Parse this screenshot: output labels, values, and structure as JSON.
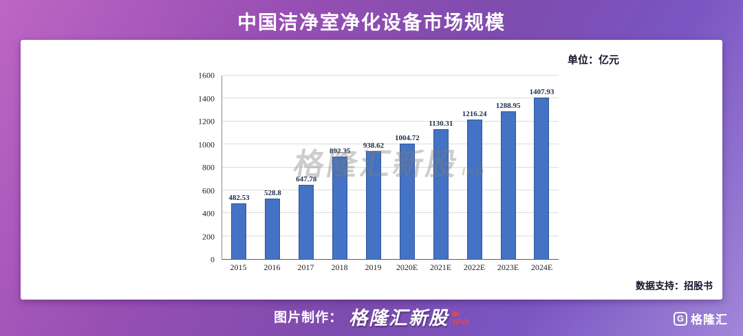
{
  "header": {
    "title": "中国洁净室净化设备市场规模"
  },
  "card": {
    "unit_label": "单位：亿元",
    "data_support": "数据支持：招股书",
    "watermark": {
      "text": "格隆汇新股",
      "ipo": "IPO"
    }
  },
  "footer": {
    "credit_prefix": "图片制作：",
    "brand": "格隆汇新股",
    "brand_ipo": "IPO",
    "logo_text": "格隆汇",
    "logo_glyph": "G"
  },
  "chart_data": {
    "type": "bar",
    "title": "中国洁净室净化设备市场规模",
    "unit": "亿元",
    "categories": [
      "2015",
      "2016",
      "2017",
      "2018",
      "2019",
      "2020E",
      "2021E",
      "2022E",
      "2023E",
      "2024E"
    ],
    "values": [
      482.53,
      528.8,
      647.78,
      892.35,
      938.62,
      1004.72,
      1130.31,
      1216.24,
      1288.95,
      1407.93
    ],
    "xlabel": "",
    "ylabel": "",
    "ylim": [
      0,
      1600
    ],
    "ytick_step": 200,
    "grid": true,
    "legend": false,
    "value_labels": true,
    "bar_color": "#4472c4"
  }
}
